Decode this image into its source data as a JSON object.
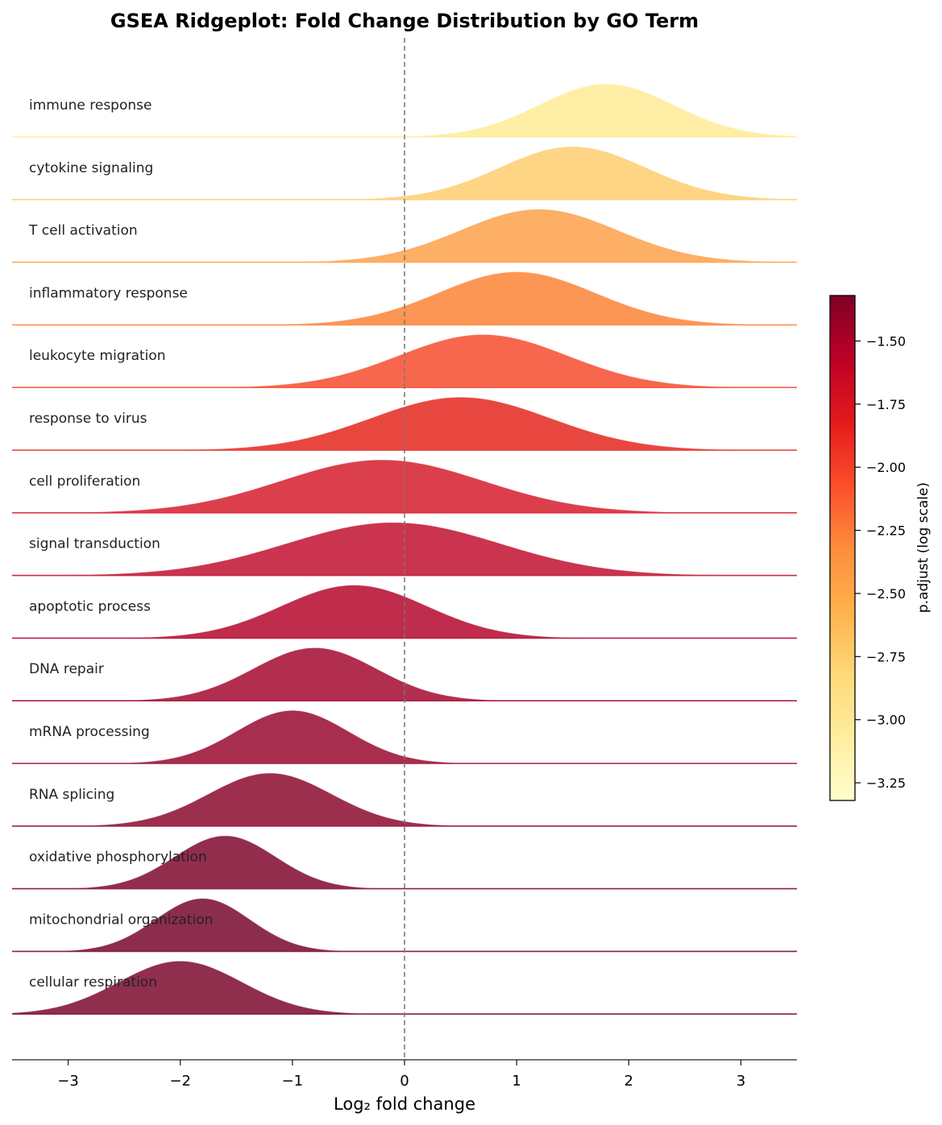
{
  "chart_data": {
    "type": "area",
    "subtype": "ridgeline",
    "title": "GSEA Ridgeplot: Fold Change Distribution by GO Term",
    "xlabel": "Log₂ fold change",
    "xlim": [
      -3.5,
      3.5
    ],
    "xticks": [
      -3,
      -2,
      -1,
      0,
      1,
      2,
      3
    ],
    "xtick_labels": [
      "−3",
      "−2",
      "−1",
      "0",
      "1",
      "2",
      "3"
    ],
    "reference_line_x": 0,
    "colormap": "YlOrRd (reversed)",
    "series": [
      {
        "name": "immune response",
        "peak_x": 1.8,
        "sd": 0.6,
        "p_adjust_log": -1.4,
        "color": "#ffeda0"
      },
      {
        "name": "cytokine signaling",
        "peak_x": 1.5,
        "sd": 0.65,
        "p_adjust_log": -1.6,
        "color": "#fed27e"
      },
      {
        "name": "T cell activation",
        "peak_x": 1.2,
        "sd": 0.7,
        "p_adjust_log": -2.0,
        "color": "#fcab5d"
      },
      {
        "name": "inflammatory response",
        "peak_x": 1.0,
        "sd": 0.7,
        "p_adjust_log": -2.3,
        "color": "#fc904c"
      },
      {
        "name": "leukocyte migration",
        "peak_x": 0.7,
        "sd": 0.75,
        "p_adjust_log": -2.5,
        "color": "#f65f43"
      },
      {
        "name": "response to virus",
        "peak_x": 0.5,
        "sd": 0.8,
        "p_adjust_log": -2.7,
        "color": "#e73d36"
      },
      {
        "name": "cell proliferation",
        "peak_x": -0.2,
        "sd": 0.9,
        "p_adjust_log": -2.85,
        "color": "#d93541"
      },
      {
        "name": "signal transduction",
        "peak_x": -0.1,
        "sd": 0.95,
        "p_adjust_log": -2.95,
        "color": "#c72945"
      },
      {
        "name": "apoptotic process",
        "peak_x": -0.45,
        "sd": 0.65,
        "p_adjust_log": -3.0,
        "color": "#bd2142"
      },
      {
        "name": "DNA repair",
        "peak_x": -0.8,
        "sd": 0.55,
        "p_adjust_log": -3.1,
        "color": "#ad2346"
      },
      {
        "name": "mRNA processing",
        "peak_x": -1.0,
        "sd": 0.5,
        "p_adjust_log": -3.15,
        "color": "#a22344"
      },
      {
        "name": "RNA splicing",
        "peak_x": -1.2,
        "sd": 0.55,
        "p_adjust_log": -3.2,
        "color": "#982444"
      },
      {
        "name": "oxidative phosphorylation",
        "peak_x": -1.6,
        "sd": 0.45,
        "p_adjust_log": -3.25,
        "color": "#8c2243"
      },
      {
        "name": "mitochondrial organization",
        "peak_x": -1.8,
        "sd": 0.42,
        "p_adjust_log": -3.28,
        "color": "#862243"
      },
      {
        "name": "cellular respiration",
        "peak_x": -2.0,
        "sd": 0.55,
        "p_adjust_log": -3.3,
        "color": "#892343"
      }
    ],
    "colorbar": {
      "label": "p.adjust (log scale)",
      "range": [
        -3.32,
        -1.32
      ],
      "ticks": [
        -1.5,
        -1.75,
        -2.0,
        -2.25,
        -2.5,
        -2.75,
        -3.0,
        -3.25
      ],
      "tick_labels": [
        "−1.50",
        "−1.75",
        "−2.00",
        "−2.25",
        "−2.50",
        "−2.75",
        "−3.00",
        "−3.25"
      ],
      "gradient_colors": [
        "#ffffcc",
        "#ffeda0",
        "#fed976",
        "#feb24c",
        "#fd8d3c",
        "#fc4e2a",
        "#e31a1c",
        "#bd0026",
        "#800026"
      ]
    }
  }
}
